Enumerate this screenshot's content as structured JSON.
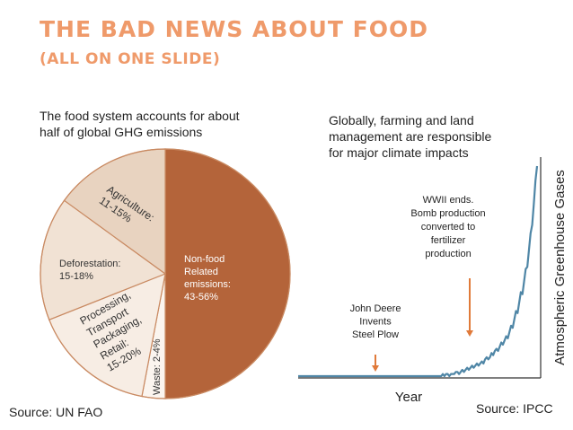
{
  "slide": {
    "title": "THE BAD NEWS ABOUT FOOD",
    "subtitle": "(ALL ON ONE SLIDE)"
  },
  "left": {
    "caption_line1": "The food system accounts for about",
    "caption_line2": "half of global GHG emissions",
    "source": "Source: UN FAO"
  },
  "right": {
    "caption_line1": "Globally, farming and land",
    "caption_line2": "management are responsible",
    "caption_line3": "for major climate impacts",
    "source": "Source: IPCC"
  },
  "colors": {
    "title": "#ef9a6a",
    "nonfood": "#b4643a",
    "agriculture": "#e8d3c0",
    "deforestation": "#f1e2d4",
    "processing": "#f7ede4",
    "waste": "#fbf5ef",
    "slice_border": "#c98a62",
    "line": "#4f86a6",
    "arrow": "#e07a3a"
  },
  "chart_data": [
    {
      "type": "pie",
      "slices": [
        {
          "label_lines": [
            "Non-food",
            "Related",
            "emissions:",
            "43-56%"
          ],
          "value": 50
        },
        {
          "label_lines": [
            "Waste: 2-4%"
          ],
          "value": 3
        },
        {
          "label_lines": [
            "Processing,",
            "Transport",
            "Packaging,",
            "Retail:",
            "15-20%"
          ],
          "value": 16
        },
        {
          "label_lines": [
            "Deforestation:",
            "15-18%"
          ],
          "value": 16
        },
        {
          "label_lines": [
            "Agriculture:",
            "11-15%"
          ],
          "value": 15
        }
      ]
    },
    {
      "type": "line",
      "xlabel": "Year",
      "ylabel": "Atmospheric Greenhouse Gases",
      "y": [
        0.0,
        0.0,
        0.0,
        0.0,
        0.0,
        0.0,
        0.0,
        0.0,
        0.0,
        0.0,
        0.0,
        0.0,
        0.0,
        0.0,
        0.0,
        0.0,
        0.0,
        0.0,
        0.0,
        0.0,
        0.0,
        0.0,
        0.0,
        0.0,
        0.0,
        0.0,
        0.0,
        0.0,
        0.0,
        0.0,
        0.0,
        0.0,
        0.0,
        0.0,
        0.0,
        0.0,
        0.0,
        0.0,
        0.0,
        0.0,
        0.0,
        0.0,
        0.0,
        0.0,
        0.0,
        0.0,
        0.0,
        0.0,
        0.0,
        0.0,
        0.0,
        0.0,
        0.0,
        0.0,
        0.0,
        0.0,
        0.0,
        0.0,
        0.0,
        0.0,
        0.0,
        0.0,
        0.0,
        0.0,
        0.0,
        0.0,
        0.0,
        0.0,
        0.0,
        0.0,
        0.0,
        0.0,
        0.0,
        0.0,
        0.0,
        0.0,
        0.0,
        0.0,
        0.0,
        0.0,
        0.0,
        0.0,
        0.0,
        0.0,
        0.0,
        0.0,
        0.0,
        0.0,
        0.0,
        0.01,
        0.0,
        0.01,
        0.01,
        0.0,
        0.01,
        0.01,
        0.01,
        0.02,
        0.02,
        0.01,
        0.02,
        0.03,
        0.02,
        0.03,
        0.04,
        0.03,
        0.04,
        0.05,
        0.04,
        0.05,
        0.06,
        0.05,
        0.06,
        0.07,
        0.06,
        0.08,
        0.09,
        0.08,
        0.09,
        0.11,
        0.1,
        0.12,
        0.13,
        0.12,
        0.14,
        0.16,
        0.15,
        0.17,
        0.19,
        0.18,
        0.21,
        0.24,
        0.23,
        0.27,
        0.31,
        0.3,
        0.35,
        0.4,
        0.39,
        0.45,
        0.51,
        0.52,
        0.6,
        0.68,
        0.72,
        0.82,
        0.93,
        1.0
      ],
      "annotations": [
        {
          "lines": [
            "John Deere",
            "Invents",
            "Steel Plow"
          ],
          "x_index": 62
        },
        {
          "lines": [
            "WWII ends.",
            "Bomb production",
            "converted to",
            "fertilizer",
            "production"
          ],
          "x_index": 118
        }
      ]
    }
  ]
}
